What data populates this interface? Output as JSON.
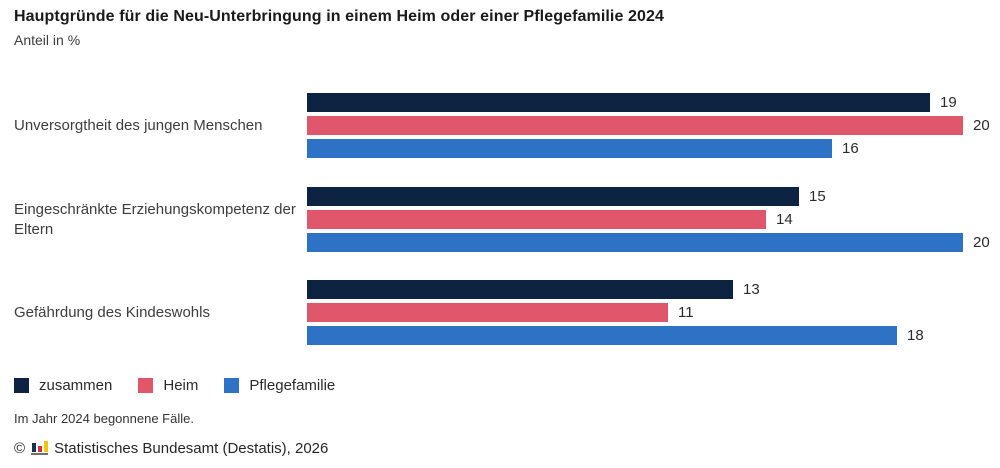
{
  "header": {
    "title": "Hauptgründe für die Neu-Unterbringung in einem Heim oder einer Pflegefamilie 2024",
    "subtitle": "Anteil in %"
  },
  "chart_data": {
    "type": "bar",
    "orientation": "horizontal",
    "title": "Hauptgründe für die Neu-Unterbringung in einem Heim oder einer Pflegefamilie 2024",
    "unit_label": "Anteil in %",
    "categories": [
      "Unversorgtheit des jungen Menschen",
      "Eingeschränkte Erziehungskompetenz der Eltern",
      "Gefährdung des Kindeswohls"
    ],
    "series": [
      {
        "name": "zusammen",
        "color": "#0c2342",
        "values": [
          19,
          15,
          13
        ]
      },
      {
        "name": "Heim",
        "color": "#e0566b",
        "values": [
          20,
          14,
          11
        ]
      },
      {
        "name": "Pflegefamilie",
        "color": "#2e72c6",
        "values": [
          16,
          20,
          18
        ]
      }
    ],
    "xlim": [
      0,
      20
    ],
    "value_labels": true,
    "grid": false,
    "legend_position": "bottom"
  },
  "footer": {
    "note": "Im Jahr 2024 begonnene Fälle.",
    "copyright_symbol": "©",
    "copyright_text": "Statistisches Bundesamt (Destatis), 2026"
  },
  "colors": {
    "background": "#ffffff",
    "title_text": "#1a1a1a",
    "label_text": "#3d3d3d",
    "value_text": "#2b2b2b",
    "logo_bar1": "#16324f",
    "logo_bar2": "#d5303e",
    "logo_bar3": "#f5c400"
  }
}
